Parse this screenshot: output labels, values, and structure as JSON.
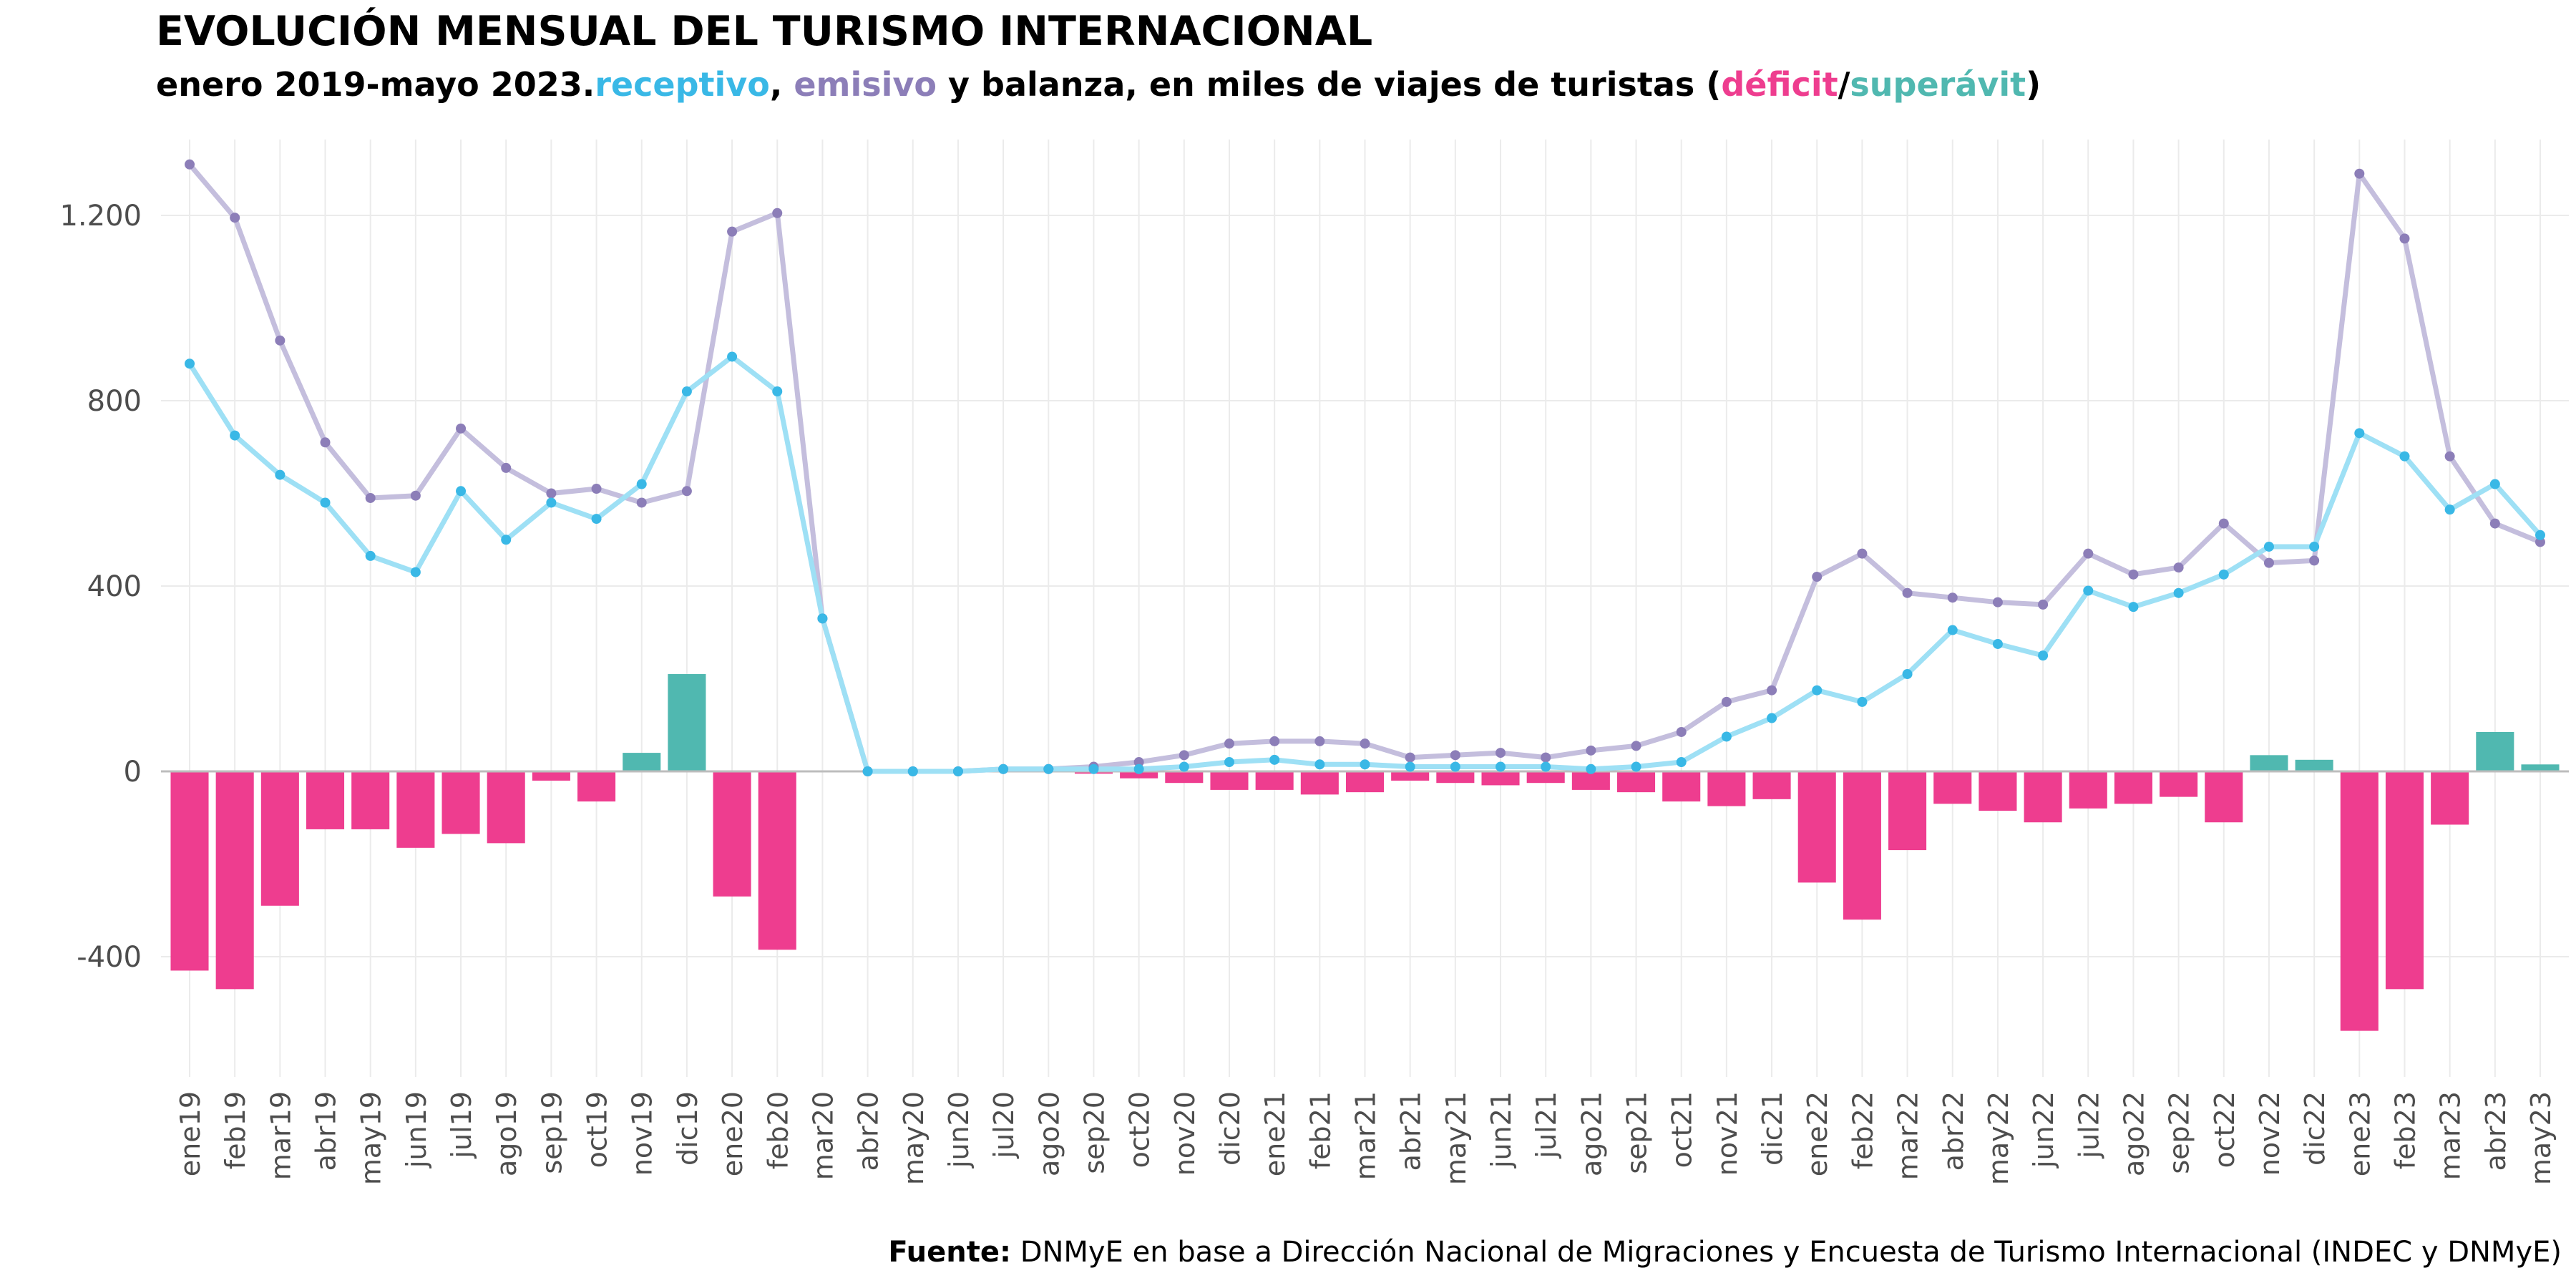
{
  "title": "EVOLUCIÓN MENSUAL DEL TURISMO INTERNACIONAL",
  "subtitle": {
    "prefix": "enero 2019-mayo 2023.",
    "receptivo": "receptivo",
    "sep1": ", ",
    "emisivo": "emisivo",
    "mid": " y balanza, en miles de viajes de turistas (",
    "deficit": "déficit",
    "slash": "/",
    "superavit": "superávit",
    "suffix": ")"
  },
  "source": {
    "label": "Fuente:",
    "text": " DNMyE en base a Dirección Nacional de Migraciones y Encuesta de Turismo Internacional (INDEC y DNMyE)"
  },
  "colors": {
    "receptivo": "#39b8e6",
    "emisivo": "#8c7eb8",
    "deficit": "#ee3d8f",
    "superavit": "#50b8b0",
    "grid": "#ebebeb",
    "zero_line": "#bdbdbd",
    "axis_text": "#4d4d4d"
  },
  "chart_data": {
    "type": "bar",
    "title": "",
    "xlabel": "",
    "ylabel": "",
    "ylim": [
      -650,
      1350
    ],
    "yticks": [
      -400,
      0,
      400,
      800,
      1200
    ],
    "ytick_labels": [
      "-400",
      "0",
      "400",
      "800",
      "1.200"
    ],
    "categories": [
      "ene19",
      "feb19",
      "mar19",
      "abr19",
      "may19",
      "jun19",
      "jul19",
      "ago19",
      "sep19",
      "oct19",
      "nov19",
      "dic19",
      "ene20",
      "feb20",
      "mar20",
      "abr20",
      "may20",
      "jun20",
      "jul20",
      "ago20",
      "sep20",
      "oct20",
      "nov20",
      "dic20",
      "ene21",
      "feb21",
      "mar21",
      "abr21",
      "may21",
      "jun21",
      "jul21",
      "ago21",
      "sep21",
      "oct21",
      "nov21",
      "dic21",
      "ene22",
      "feb22",
      "mar22",
      "abr22",
      "may22",
      "jun22",
      "jul22",
      "ago22",
      "sep22",
      "oct22",
      "nov22",
      "dic22",
      "ene23",
      "feb23",
      "mar23",
      "abr23",
      "may23"
    ],
    "series": [
      {
        "name": "receptivo",
        "chart": "line",
        "values": [
          880,
          725,
          640,
          580,
          465,
          430,
          605,
          500,
          580,
          545,
          620,
          820,
          895,
          820,
          330,
          0,
          0,
          0,
          5,
          5,
          5,
          5,
          10,
          20,
          25,
          15,
          15,
          10,
          10,
          10,
          10,
          5,
          10,
          20,
          75,
          115,
          175,
          150,
          210,
          305,
          275,
          250,
          390,
          355,
          385,
          425,
          485,
          485,
          730,
          680,
          565,
          620,
          510
        ]
      },
      {
        "name": "emisivo",
        "chart": "line",
        "values": [
          1310,
          1195,
          930,
          710,
          590,
          595,
          740,
          655,
          600,
          610,
          580,
          605,
          1165,
          1205,
          330,
          0,
          0,
          0,
          5,
          5,
          10,
          20,
          35,
          60,
          65,
          65,
          60,
          30,
          35,
          40,
          30,
          45,
          55,
          85,
          150,
          175,
          420,
          470,
          385,
          375,
          365,
          360,
          470,
          425,
          440,
          535,
          450,
          455,
          1290,
          1150,
          680,
          535,
          495
        ]
      },
      {
        "name": "balanza",
        "chart": "bar",
        "values": [
          -430,
          -470,
          -290,
          -125,
          -125,
          -165,
          -135,
          -155,
          -20,
          -65,
          40,
          210,
          -270,
          -385,
          0,
          0,
          0,
          0,
          0,
          0,
          -5,
          -15,
          -25,
          -40,
          -40,
          -50,
          -45,
          -20,
          -25,
          -30,
          -25,
          -40,
          -45,
          -65,
          -75,
          -60,
          -240,
          -320,
          -170,
          -70,
          -85,
          -110,
          -80,
          -70,
          -55,
          -110,
          35,
          25,
          -560,
          -470,
          -115,
          85,
          15
        ]
      }
    ]
  }
}
